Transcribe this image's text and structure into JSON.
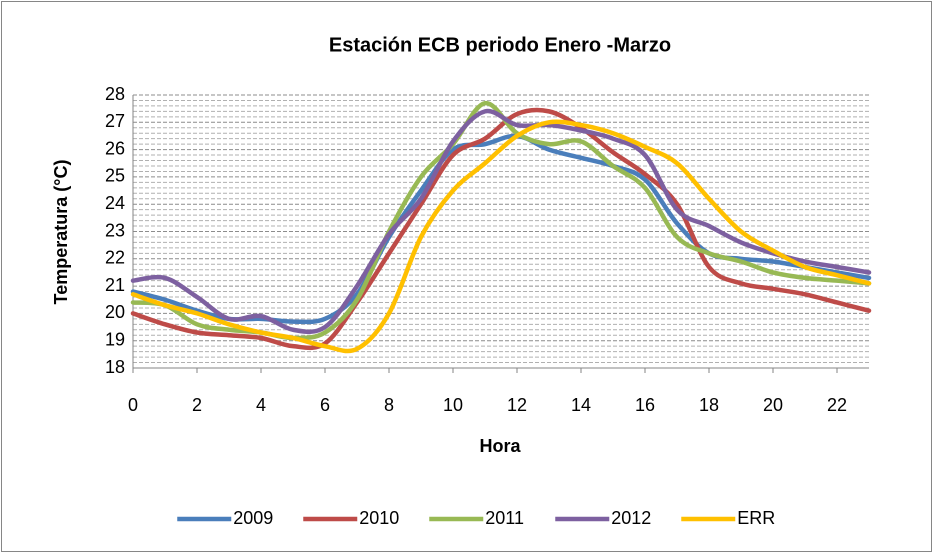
{
  "chart_data": {
    "type": "line",
    "title": "Estación ECB periodo Enero -Marzo",
    "x_label": "Hora",
    "y_label": "Temperatura (°C)",
    "x": [
      0,
      1,
      2,
      3,
      4,
      5,
      6,
      7,
      8,
      9,
      10,
      11,
      12,
      13,
      14,
      15,
      16,
      17,
      18,
      19,
      20,
      21,
      22,
      23
    ],
    "xlim": [
      0,
      23
    ],
    "xticks": [
      0,
      2,
      4,
      6,
      8,
      10,
      12,
      14,
      16,
      18,
      20,
      22
    ],
    "ylim": [
      18,
      28
    ],
    "yticks": [
      18,
      19,
      20,
      21,
      22,
      23,
      24,
      25,
      26,
      27,
      28
    ],
    "grid": true,
    "minor_grid": true,
    "smooth": true,
    "legend": "bottom",
    "series": [
      {
        "name": "2009",
        "color": "#4a7ebb",
        "values": [
          20.8,
          20.5,
          20.1,
          19.8,
          19.8,
          19.7,
          19.8,
          20.7,
          22.8,
          24.5,
          26.0,
          26.2,
          26.5,
          26.0,
          25.7,
          25.4,
          24.9,
          23.3,
          22.2,
          22.0,
          21.9,
          21.7,
          21.5,
          21.3
        ]
      },
      {
        "name": "2010",
        "color": "#be4b48",
        "values": [
          20.0,
          19.6,
          19.3,
          19.2,
          19.1,
          18.8,
          18.9,
          20.4,
          22.2,
          24.0,
          25.8,
          26.4,
          27.3,
          27.4,
          26.8,
          25.9,
          25.1,
          24.0,
          21.7,
          21.1,
          20.9,
          20.7,
          20.4,
          20.1
        ]
      },
      {
        "name": "2011",
        "color": "#98b954",
        "values": [
          20.4,
          20.3,
          19.6,
          19.4,
          19.3,
          19.1,
          19.3,
          20.5,
          23.0,
          25.0,
          26.2,
          27.7,
          26.6,
          26.2,
          26.3,
          25.4,
          24.6,
          22.8,
          22.2,
          21.9,
          21.5,
          21.3,
          21.2,
          21.1
        ]
      },
      {
        "name": "2012",
        "color": "#7d60a0",
        "values": [
          21.2,
          21.3,
          20.6,
          19.8,
          19.9,
          19.4,
          19.5,
          21.0,
          22.9,
          24.2,
          26.3,
          27.4,
          26.9,
          26.9,
          26.7,
          26.4,
          25.8,
          23.8,
          23.2,
          22.6,
          22.2,
          21.9,
          21.7,
          21.5
        ]
      },
      {
        "name": "ERR",
        "color": "#ffc000",
        "values": [
          20.7,
          20.3,
          20.0,
          19.6,
          19.3,
          19.1,
          18.8,
          18.7,
          20.0,
          22.8,
          24.5,
          25.5,
          26.5,
          27.0,
          26.9,
          26.6,
          26.1,
          25.5,
          24.2,
          23.0,
          22.3,
          21.7,
          21.4,
          21.1
        ]
      }
    ]
  }
}
